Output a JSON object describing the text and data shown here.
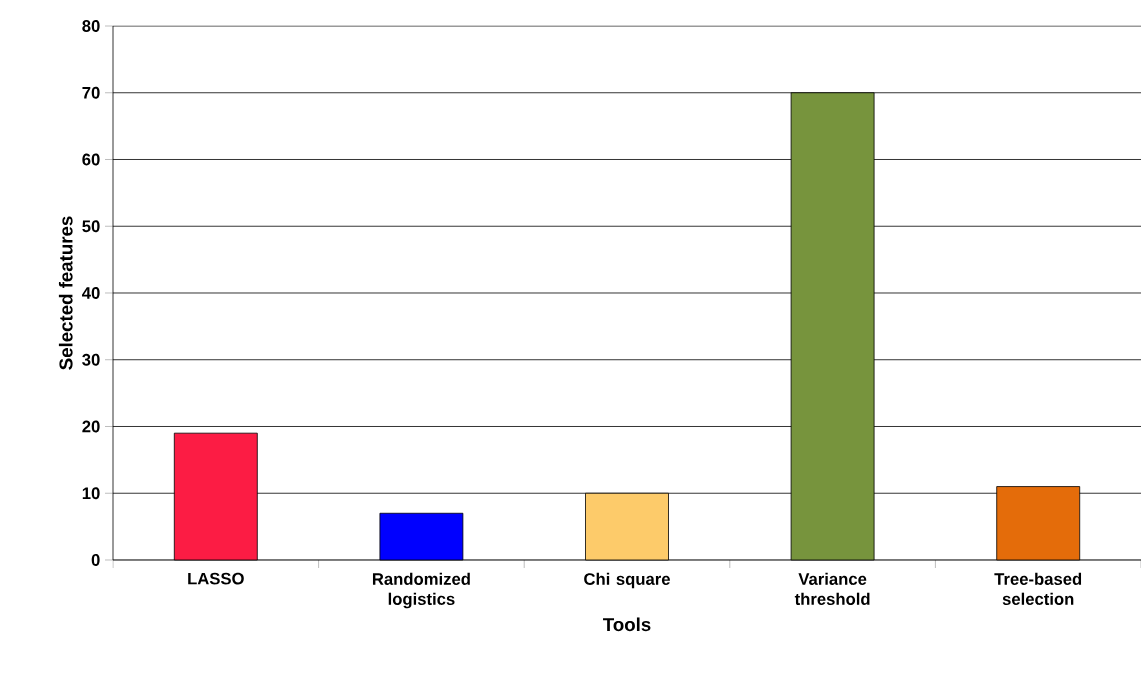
{
  "chart_data": {
    "type": "bar",
    "xlabel": "Tools",
    "ylabel": "Selected features",
    "categories": [
      "LASSO",
      "Randomized logistics",
      "Chi square",
      "Variance threshold",
      "Tree-based selection"
    ],
    "values": [
      19,
      7,
      10,
      70,
      11
    ],
    "colors": [
      "#fc1c44",
      "#0000ff",
      "#fdcb6a",
      "#77943d",
      "#e46c0a"
    ],
    "ylim": [
      0,
      80
    ],
    "yticks": [
      0,
      10,
      20,
      30,
      40,
      50,
      60,
      70,
      80
    ],
    "grid": "y"
  }
}
